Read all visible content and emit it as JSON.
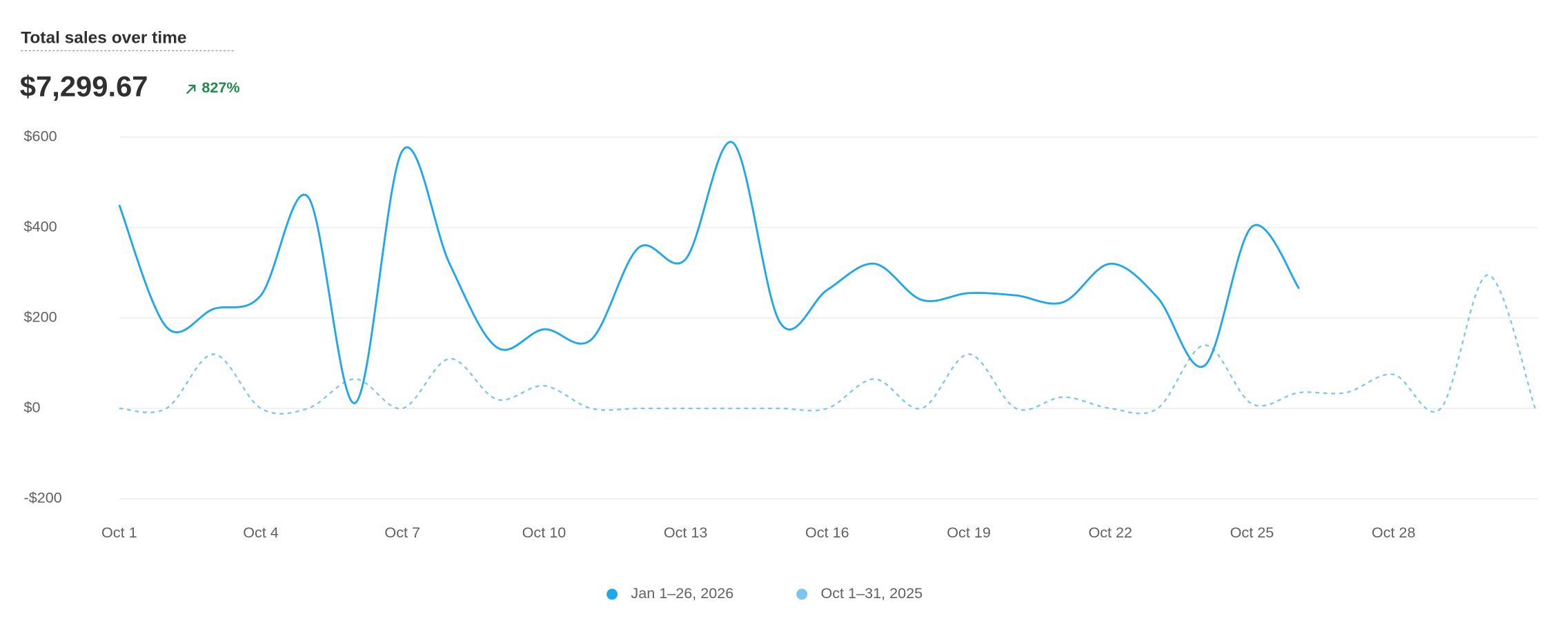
{
  "chart_data": {
    "type": "line",
    "title": "Total sales over time",
    "total": "$7,299.67",
    "change": "827%",
    "categories": [
      "Oct 1",
      null,
      null,
      "Oct 4",
      null,
      null,
      "Oct 7",
      null,
      null,
      "Oct 10",
      null,
      null,
      "Oct 13",
      null,
      null,
      "Oct 16",
      null,
      null,
      "Oct 19",
      null,
      null,
      "Oct 22",
      null,
      null,
      "Oct 25",
      null,
      null,
      "Oct 28",
      null,
      null,
      null
    ],
    "series": [
      {
        "name": "Jan 1–26, 2026",
        "color": "#1fa6ec",
        "dash": false,
        "values": [
          450,
          180,
          220,
          250,
          468,
          12,
          570,
          320,
          135,
          175,
          152,
          355,
          330,
          588,
          190,
          262,
          320,
          240,
          255,
          250,
          235,
          320,
          245,
          95,
          402,
          265,
          null,
          null,
          null,
          null,
          null
        ]
      },
      {
        "name": "Oct 1–31, 2025",
        "color": "#7cc6ee",
        "dash": true,
        "values": [
          0,
          0,
          120,
          0,
          0,
          65,
          0,
          110,
          20,
          50,
          0,
          0,
          0,
          0,
          0,
          0,
          65,
          0,
          120,
          0,
          25,
          0,
          0,
          140,
          10,
          35,
          35,
          75,
          0,
          295,
          0
        ]
      }
    ],
    "ylim": [
      -200,
      600
    ],
    "yticks": [
      {
        "value": -200,
        "label": "-$200"
      },
      {
        "value": 0,
        "label": "$0"
      },
      {
        "value": 200,
        "label": "$200"
      },
      {
        "value": 400,
        "label": "$400"
      },
      {
        "value": 600,
        "label": "$600"
      }
    ],
    "grid": true
  }
}
